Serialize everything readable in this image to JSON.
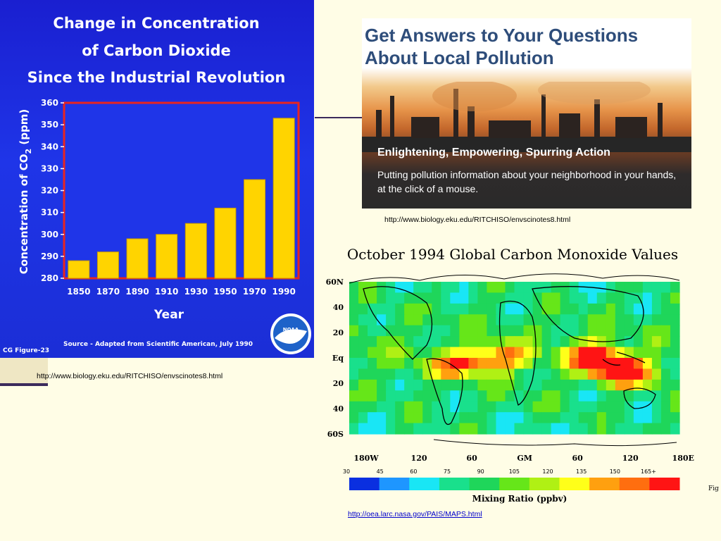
{
  "slide": {
    "colors": {
      "background": "#fffde6",
      "panel_blue": "#1f35e8",
      "bar_yellow": "#ffd400",
      "plot_border": "#e8251f"
    }
  },
  "chart_data": [
    {
      "type": "bar",
      "title": "Change in Concentration of Carbon Dioxide Since the Industrial Revolution",
      "title_lines": [
        "Change in Concentration",
        "of Carbon Dioxide",
        "Since the Industrial Revolution"
      ],
      "xlabel": "Year",
      "ylabel": "Concentration of CO2 (ppm)",
      "ylabel_main": "Concentration of CO",
      "ylabel_sub": "2",
      "ylabel_unit": "(ppm)",
      "ylim": [
        280,
        360
      ],
      "yticks": [
        280,
        290,
        300,
        310,
        320,
        330,
        340,
        350,
        360
      ],
      "categories": [
        "1850",
        "1870",
        "1890",
        "1910",
        "1930",
        "1950",
        "1970",
        "1990"
      ],
      "values": [
        288,
        292,
        298,
        300,
        305,
        312,
        325,
        353
      ],
      "source": "Source - Adapted from Scientific American, July 1990",
      "figure_label": "CG Figure-23",
      "logo_text": "NOAA",
      "grid": false,
      "legend": "none"
    },
    {
      "type": "heatmap",
      "title": "October 1994 Global Carbon Monoxide Values",
      "y_tick_labels": [
        "60N",
        "40",
        "20",
        "Eq",
        "20",
        "40",
        "60S"
      ],
      "x_tick_labels": [
        "180W",
        "120",
        "60",
        "GM",
        "60",
        "120",
        "180E"
      ],
      "colorbar_ticks": [
        "30",
        "45",
        "60",
        "75",
        "90",
        "105",
        "120",
        "135",
        "150",
        "165+"
      ],
      "colorbar_colors": [
        "#0a2fe0",
        "#1e96ff",
        "#19e6f5",
        "#19e08c",
        "#1fd65a",
        "#66e619",
        "#b0f014",
        "#ffff19",
        "#ffa00f",
        "#ff6e0f",
        "#ff1414"
      ],
      "colorbar_label": "Mixing Ratio (ppbv)",
      "unit": "ppbv",
      "edge_text": "Fig"
    }
  ],
  "banner": {
    "title": "Get Answers to Your Questions About Local Pollution",
    "subtitle": "Enlightening, Empowering, Spurring Action",
    "description": "Putting pollution information about your neighborhood in your hands, at the click of a mouse."
  },
  "urls": {
    "left_chart": "http://www.biology.eku.edu/RITCHISO/envscinotes8.html",
    "banner": "http://www.biology.eku.edu/RITCHISO/envscinotes8.html",
    "co_map": "http://oea.larc.nasa.gov/PAIS/MAPS.html"
  }
}
